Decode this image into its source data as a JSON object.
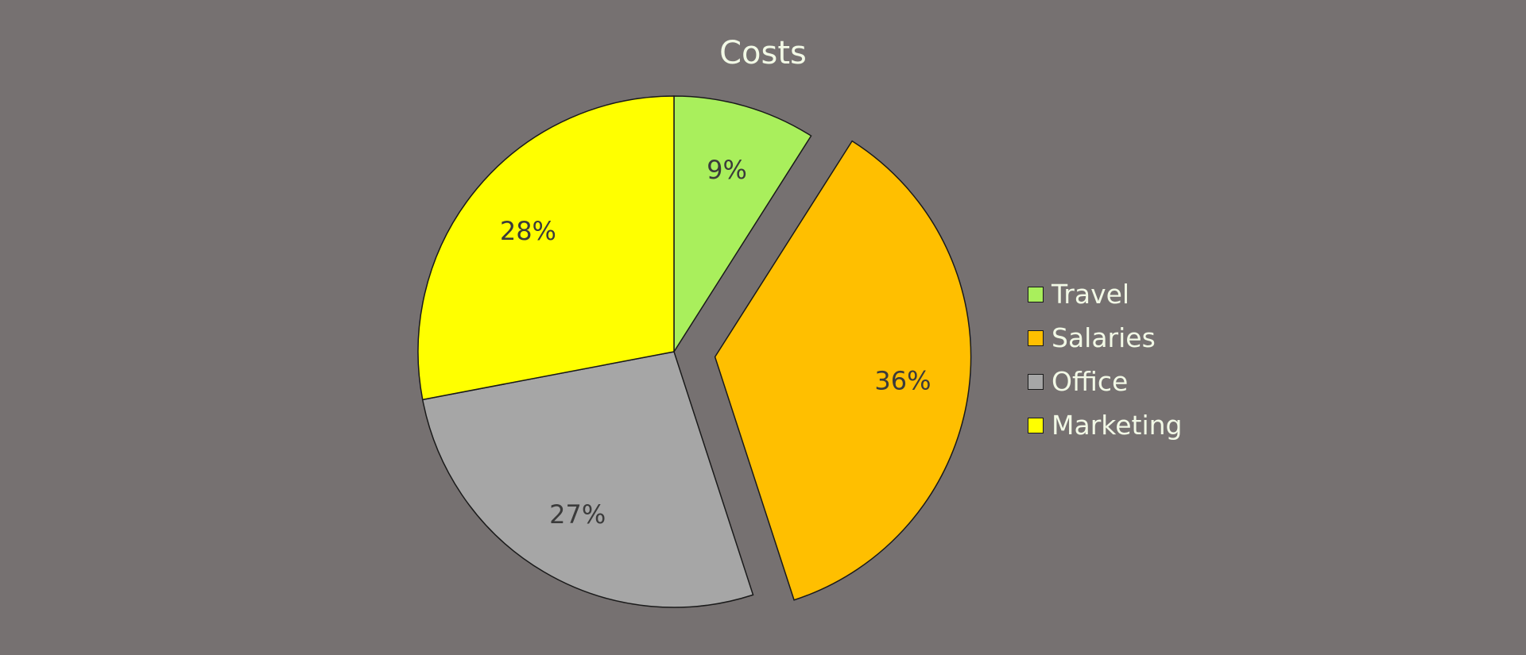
{
  "chart_data": {
    "type": "pie",
    "title": "Costs",
    "categories": [
      "Travel",
      "Salaries",
      "Office",
      "Marketing"
    ],
    "values": [
      9,
      36,
      27,
      28
    ],
    "labels": [
      "9%",
      "36%",
      "27%",
      "28%"
    ],
    "colors": [
      "#a9ef5c",
      "#ffbf00",
      "#a6a6a6",
      "#ffff00"
    ],
    "exploded": [
      "Salaries"
    ],
    "legend_position": "right"
  }
}
